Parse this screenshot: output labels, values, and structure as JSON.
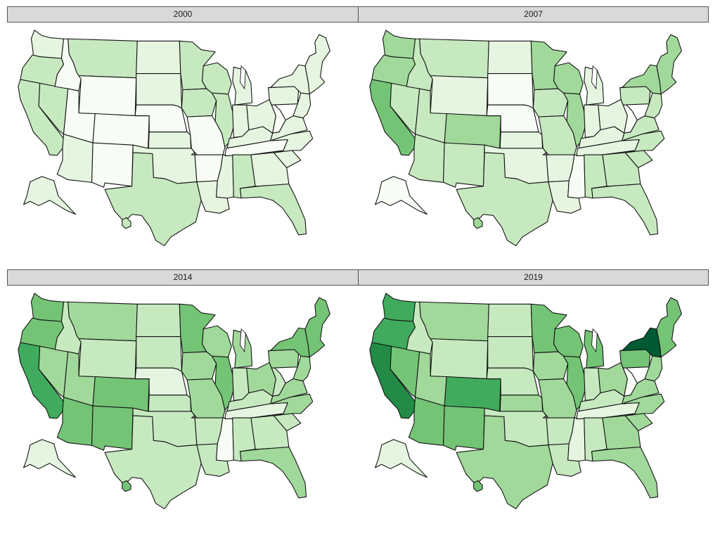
{
  "facet_labels": [
    "2000",
    "2007",
    "2014",
    "2019"
  ],
  "palette": [
    "#f7fcf5",
    "#e5f5e0",
    "#c7e9c0",
    "#a1d99b",
    "#74c476",
    "#41ab5d",
    "#238b45",
    "#005a32"
  ],
  "panels": [
    {
      "label": "2000",
      "levels": {
        "WA": 1,
        "OR": 2,
        "CA": 2,
        "NV": 2,
        "ID": 0,
        "MT": 2,
        "WY": 0,
        "UT": 0,
        "AZ": 1,
        "CO": 0,
        "NM": 0,
        "ND": 1,
        "SD": 1,
        "NE": 0,
        "KS": 1,
        "OK": 1,
        "TX": 2,
        "MN": 2,
        "IA": 2,
        "MO": 0,
        "AR": 0,
        "LA": 1,
        "WI": 2,
        "IL": 2,
        "MS": 1,
        "MI": 1,
        "IN": 1,
        "KY": 1,
        "TN": 0,
        "AL": 2,
        "OH": 1,
        "WV": 0,
        "GA": 1,
        "FL": 2,
        "SC": 1,
        "NC": 1,
        "VA": 1,
        "PA": 1,
        "NY": 1,
        "ME": 1,
        "AK": 1,
        "HI": 2
      }
    },
    {
      "label": "2007",
      "levels": {
        "WA": 3,
        "OR": 3,
        "CA": 4,
        "NV": 2,
        "ID": 2,
        "MT": 2,
        "WY": 1,
        "UT": 2,
        "AZ": 2,
        "CO": 3,
        "NM": 2,
        "ND": 1,
        "SD": 0,
        "NE": 0,
        "KS": 1,
        "OK": 1,
        "TX": 2,
        "MN": 3,
        "IA": 2,
        "MO": 2,
        "AR": 1,
        "LA": 1,
        "WI": 3,
        "IL": 3,
        "MS": 0,
        "MI": 1,
        "IN": 1,
        "KY": 1,
        "TN": 1,
        "AL": 2,
        "OH": 1,
        "WV": 0,
        "GA": 2,
        "FL": 2,
        "SC": 2,
        "NC": 2,
        "VA": 2,
        "PA": 2,
        "NY": 3,
        "ME": 3,
        "AK": 0,
        "HI": 3
      }
    },
    {
      "label": "2014",
      "levels": {
        "WA": 4,
        "OR": 4,
        "CA": 5,
        "NV": 3,
        "ID": 2,
        "MT": 3,
        "WY": 2,
        "UT": 3,
        "AZ": 4,
        "CO": 4,
        "NM": 4,
        "ND": 2,
        "SD": 2,
        "NE": 1,
        "KS": 2,
        "OK": 2,
        "TX": 2,
        "MN": 4,
        "IA": 3,
        "MO": 3,
        "AR": 2,
        "LA": 2,
        "WI": 3,
        "IL": 4,
        "MS": 0,
        "MI": 3,
        "IN": 2,
        "KY": 2,
        "TN": 1,
        "AL": 2,
        "OH": 3,
        "WV": 2,
        "GA": 2,
        "FL": 3,
        "SC": 2,
        "NC": 3,
        "VA": 3,
        "PA": 3,
        "NY": 4,
        "ME": 4,
        "AK": 1,
        "HI": 4
      }
    },
    {
      "label": "2019",
      "levels": {
        "WA": 5,
        "OR": 5,
        "CA": 6,
        "NV": 4,
        "ID": 2,
        "MT": 3,
        "WY": 2,
        "UT": 3,
        "AZ": 4,
        "CO": 5,
        "NM": 4,
        "ND": 2,
        "SD": 2,
        "NE": 2,
        "KS": 3,
        "OK": 2,
        "TX": 3,
        "MN": 4,
        "IA": 3,
        "MO": 3,
        "AR": 2,
        "LA": 2,
        "WI": 4,
        "IL": 4,
        "MS": 1,
        "MI": 4,
        "IN": 2,
        "KY": 2,
        "TN": 1,
        "AL": 2,
        "OH": 3,
        "WV": 0,
        "GA": 3,
        "FL": 3,
        "SC": 3,
        "NC": 3,
        "VA": 3,
        "PA": 4,
        "NY": 7,
        "ME": 4,
        "AK": 1,
        "HI": 4
      }
    }
  ]
}
